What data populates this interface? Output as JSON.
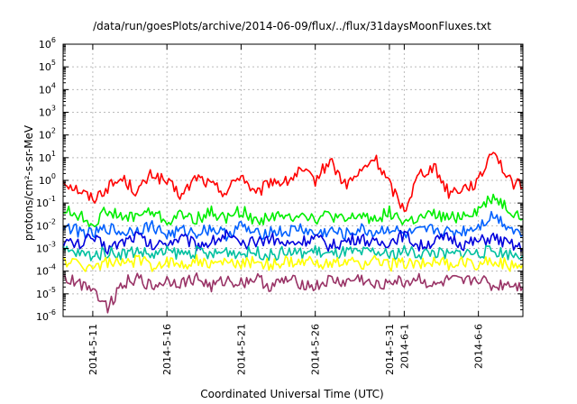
{
  "chart_data": {
    "type": "line",
    "title": "/data/run/goesPlots/archive/2014-06-09/flux/../flux/31daysMoonFluxes.txt",
    "xlabel": "Coordinated Universal Time (UTC)",
    "ylabel": "protons/cm²-s-sr-MeV",
    "yscale": "log",
    "ylim": [
      1e-06,
      1000000.0
    ],
    "xlim": [
      "2014-05-09",
      "2014-06-09"
    ],
    "grid": true,
    "y_ticks": [
      {
        "base": "10",
        "exp": "-6"
      },
      {
        "base": "10",
        "exp": "-5"
      },
      {
        "base": "10",
        "exp": "-4"
      },
      {
        "base": "10",
        "exp": "-3"
      },
      {
        "base": "10",
        "exp": "-2"
      },
      {
        "base": "10",
        "exp": "-1"
      },
      {
        "base": "10",
        "exp": "0"
      },
      {
        "base": "10",
        "exp": "1"
      },
      {
        "base": "10",
        "exp": "2"
      },
      {
        "base": "10",
        "exp": "3"
      },
      {
        "base": "10",
        "exp": "4"
      },
      {
        "base": "10",
        "exp": "5"
      },
      {
        "base": "10",
        "exp": "6"
      }
    ],
    "x_ticks": [
      {
        "label": "2014-5-11",
        "date": "2014-05-11"
      },
      {
        "label": "2014-5-16",
        "date": "2014-05-16"
      },
      {
        "label": "2014-5-21",
        "date": "2014-05-21"
      },
      {
        "label": "2014-5-26",
        "date": "2014-05-26"
      },
      {
        "label": "2014-5-31",
        "date": "2014-05-31"
      },
      {
        "label": "2014-6-1",
        "date": "2014-06-01"
      },
      {
        "label": "2014-6-6",
        "date": "2014-06-06"
      }
    ],
    "series": [
      {
        "color": "#ff0000",
        "x": [
          "2014-05-09",
          "2014-05-10",
          "2014-05-11",
          "2014-05-12",
          "2014-05-13",
          "2014-05-14",
          "2014-05-15",
          "2014-05-16",
          "2014-05-17",
          "2014-05-18",
          "2014-05-19",
          "2014-05-20",
          "2014-05-21",
          "2014-05-22",
          "2014-05-23",
          "2014-05-24",
          "2014-05-25",
          "2014-05-26",
          "2014-05-27",
          "2014-05-28",
          "2014-05-29",
          "2014-05-30",
          "2014-05-31",
          "2014-06-01",
          "2014-06-02",
          "2014-06-03",
          "2014-06-04",
          "2014-06-05",
          "2014-06-06",
          "2014-06-07",
          "2014-06-08",
          "2014-06-09"
        ],
        "values": [
          1.0,
          0.4,
          0.15,
          0.5,
          1.2,
          0.3,
          2.0,
          0.8,
          0.2,
          1.5,
          0.6,
          0.3,
          2.0,
          0.2,
          1.0,
          0.8,
          2.5,
          1.0,
          8.0,
          0.6,
          2.0,
          10.0,
          0.7,
          0.05,
          2.0,
          4.0,
          0.3,
          0.5,
          0.8,
          30.0,
          1.0,
          0.5
        ]
      },
      {
        "color": "#00ee00",
        "x": [
          "2014-05-09",
          "2014-05-10",
          "2014-05-11",
          "2014-05-12",
          "2014-05-13",
          "2014-05-14",
          "2014-05-15",
          "2014-05-16",
          "2014-05-17",
          "2014-05-18",
          "2014-05-19",
          "2014-05-20",
          "2014-05-21",
          "2014-05-22",
          "2014-05-23",
          "2014-05-24",
          "2014-05-25",
          "2014-05-26",
          "2014-05-27",
          "2014-05-28",
          "2014-05-29",
          "2014-05-30",
          "2014-05-31",
          "2014-06-01",
          "2014-06-02",
          "2014-06-03",
          "2014-06-04",
          "2014-06-05",
          "2014-06-06",
          "2014-06-07",
          "2014-06-08",
          "2014-06-09"
        ],
        "values": [
          0.05,
          0.03,
          0.012,
          0.05,
          0.02,
          0.03,
          0.04,
          0.015,
          0.03,
          0.02,
          0.04,
          0.02,
          0.05,
          0.015,
          0.03,
          0.02,
          0.04,
          0.02,
          0.03,
          0.015,
          0.03,
          0.02,
          0.04,
          0.015,
          0.02,
          0.03,
          0.02,
          0.03,
          0.05,
          0.2,
          0.06,
          0.02
        ]
      },
      {
        "color": "#0060ff",
        "x": [
          "2014-05-09",
          "2014-05-10",
          "2014-05-11",
          "2014-05-12",
          "2014-05-13",
          "2014-05-14",
          "2014-05-15",
          "2014-05-16",
          "2014-05-17",
          "2014-05-18",
          "2014-05-19",
          "2014-05-20",
          "2014-05-21",
          "2014-05-22",
          "2014-05-23",
          "2014-05-24",
          "2014-05-25",
          "2014-05-26",
          "2014-05-27",
          "2014-05-28",
          "2014-05-29",
          "2014-05-30",
          "2014-05-31",
          "2014-06-01",
          "2014-06-02",
          "2014-06-03",
          "2014-06-04",
          "2014-06-05",
          "2014-06-06",
          "2014-06-07",
          "2014-06-08",
          "2014-06-09"
        ],
        "values": [
          0.01,
          0.006,
          0.004,
          0.008,
          0.005,
          0.007,
          0.01,
          0.004,
          0.006,
          0.005,
          0.008,
          0.004,
          0.01,
          0.004,
          0.006,
          0.005,
          0.008,
          0.004,
          0.006,
          0.004,
          0.007,
          0.005,
          0.008,
          0.004,
          0.005,
          0.007,
          0.005,
          0.006,
          0.01,
          0.03,
          0.01,
          0.004
        ]
      },
      {
        "color": "#0000dd",
        "x": [
          "2014-05-09",
          "2014-05-10",
          "2014-05-11",
          "2014-05-12",
          "2014-05-13",
          "2014-05-14",
          "2014-05-15",
          "2014-05-16",
          "2014-05-17",
          "2014-05-18",
          "2014-05-19",
          "2014-05-20",
          "2014-05-21",
          "2014-05-22",
          "2014-05-23",
          "2014-05-24",
          "2014-05-25",
          "2014-05-26",
          "2014-05-27",
          "2014-05-28",
          "2014-05-29",
          "2014-05-30",
          "2014-05-31",
          "2014-06-01",
          "2014-06-02",
          "2014-06-03",
          "2014-06-04",
          "2014-06-05",
          "2014-06-06",
          "2014-06-07",
          "2014-06-08",
          "2014-06-09"
        ],
        "values": [
          0.002,
          0.0015,
          0.003,
          0.001,
          0.002,
          0.004,
          0.0012,
          0.002,
          0.003,
          0.0015,
          0.002,
          0.004,
          0.0012,
          0.002,
          0.003,
          0.0015,
          0.002,
          0.003,
          0.0012,
          0.002,
          0.003,
          0.0015,
          0.002,
          0.004,
          0.0012,
          0.002,
          0.003,
          0.0015,
          0.002,
          0.003,
          0.0015,
          0.001
        ]
      },
      {
        "color": "#00c0a0",
        "x": [
          "2014-05-09",
          "2014-05-10",
          "2014-05-11",
          "2014-05-12",
          "2014-05-13",
          "2014-05-14",
          "2014-05-15",
          "2014-05-16",
          "2014-05-17",
          "2014-05-18",
          "2014-05-19",
          "2014-05-20",
          "2014-05-21",
          "2014-05-22",
          "2014-05-23",
          "2014-05-24",
          "2014-05-25",
          "2014-05-26",
          "2014-05-27",
          "2014-05-28",
          "2014-05-29",
          "2014-05-30",
          "2014-05-31",
          "2014-06-01",
          "2014-06-02",
          "2014-06-03",
          "2014-06-04",
          "2014-06-05",
          "2014-06-06",
          "2014-06-07",
          "2014-06-08",
          "2014-06-09"
        ],
        "values": [
          0.0008,
          0.0006,
          0.0005,
          0.0007,
          0.0006,
          0.0008,
          0.0005,
          0.0007,
          0.0006,
          0.0007,
          0.0005,
          0.0008,
          0.0006,
          0.0007,
          0.0005,
          0.0007,
          0.0006,
          0.0008,
          0.0005,
          0.0007,
          0.0006,
          0.0007,
          0.0005,
          0.0008,
          0.0006,
          0.0007,
          0.0005,
          0.0007,
          0.0006,
          0.0008,
          0.0006,
          0.0005
        ]
      },
      {
        "color": "#ffff00",
        "x": [
          "2014-05-09",
          "2014-05-10",
          "2014-05-11",
          "2014-05-12",
          "2014-05-13",
          "2014-05-14",
          "2014-05-15",
          "2014-05-16",
          "2014-05-17",
          "2014-05-18",
          "2014-05-19",
          "2014-05-20",
          "2014-05-21",
          "2014-05-22",
          "2014-05-23",
          "2014-05-24",
          "2014-05-25",
          "2014-05-26",
          "2014-05-27",
          "2014-05-28",
          "2014-05-29",
          "2014-05-30",
          "2014-05-31",
          "2014-06-01",
          "2014-06-02",
          "2014-06-03",
          "2014-06-04",
          "2014-06-05",
          "2014-06-06",
          "2014-06-07",
          "2014-06-08",
          "2014-06-09"
        ],
        "values": [
          0.0003,
          0.0002,
          0.00015,
          0.00025,
          0.0002,
          0.0003,
          0.00018,
          0.00025,
          0.0002,
          0.0003,
          0.00018,
          0.00025,
          0.0002,
          0.0003,
          0.00018,
          0.00025,
          0.0002,
          0.0003,
          0.00018,
          0.00025,
          0.0002,
          0.0003,
          0.00018,
          0.00025,
          0.0002,
          0.0003,
          0.00018,
          0.00025,
          0.0002,
          0.0003,
          0.00018,
          0.0002
        ]
      },
      {
        "color": "#993366",
        "x": [
          "2014-05-09",
          "2014-05-10",
          "2014-05-11",
          "2014-05-12",
          "2014-05-13",
          "2014-05-14",
          "2014-05-15",
          "2014-05-16",
          "2014-05-17",
          "2014-05-18",
          "2014-05-19",
          "2014-05-20",
          "2014-05-21",
          "2014-05-22",
          "2014-05-23",
          "2014-05-24",
          "2014-05-25",
          "2014-05-26",
          "2014-05-27",
          "2014-05-28",
          "2014-05-29",
          "2014-05-30",
          "2014-05-31",
          "2014-06-01",
          "2014-06-02",
          "2014-06-03",
          "2014-06-04",
          "2014-06-05",
          "2014-06-06",
          "2014-06-07",
          "2014-06-08",
          "2014-06-09"
        ],
        "values": [
          5e-05,
          3e-05,
          2e-05,
          2.5e-06,
          3e-05,
          5e-05,
          2e-05,
          4e-05,
          3e-05,
          5e-05,
          2e-05,
          4e-05,
          3e-05,
          5e-05,
          2e-05,
          4e-05,
          3e-05,
          2e-05,
          4e-05,
          3e-05,
          5e-05,
          2e-05,
          4e-05,
          3e-05,
          5e-05,
          2e-05,
          4e-05,
          3e-05,
          5e-05,
          2e-05,
          3e-05,
          2e-05
        ]
      }
    ]
  }
}
